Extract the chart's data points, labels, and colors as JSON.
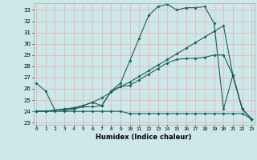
{
  "xlabel": "Humidex (Indice chaleur)",
  "bg_color": "#cce8e8",
  "grid_color": "#e8b8b8",
  "line_color": "#1a6060",
  "yticks": [
    23,
    24,
    25,
    26,
    27,
    28,
    29,
    30,
    31,
    32,
    33
  ],
  "xticks": [
    0,
    1,
    2,
    3,
    4,
    5,
    6,
    7,
    8,
    9,
    10,
    11,
    12,
    13,
    14,
    15,
    16,
    17,
    18,
    19,
    20,
    21,
    22,
    23
  ],
  "xlim": [
    -0.3,
    23.3
  ],
  "ylim": [
    22.8,
    33.6
  ],
  "line1_y": [
    26.5,
    25.8,
    24.1,
    24.1,
    24.2,
    24.4,
    24.4,
    24.5,
    25.8,
    26.5,
    28.5,
    30.5,
    32.5,
    33.3,
    33.5,
    33.0,
    33.2,
    33.2,
    33.3,
    31.8,
    24.2,
    27.2,
    24.2,
    23.3
  ],
  "line2_y": [
    24.0,
    24.0,
    24.0,
    24.0,
    24.0,
    24.0,
    24.0,
    24.0,
    24.0,
    24.0,
    23.8,
    23.8,
    23.8,
    23.8,
    23.8,
    23.8,
    23.8,
    23.8,
    23.8,
    23.8,
    23.8,
    23.8,
    23.8,
    23.3
  ],
  "line3_y": [
    24.0,
    24.0,
    24.1,
    24.2,
    24.3,
    24.5,
    24.8,
    24.5,
    25.8,
    26.2,
    26.3,
    26.8,
    27.3,
    27.8,
    28.3,
    28.6,
    28.7,
    28.7,
    28.8,
    29.0,
    29.0,
    27.2,
    24.2,
    23.3
  ],
  "line4_y": [
    24.0,
    24.0,
    24.1,
    24.2,
    24.3,
    24.5,
    24.8,
    25.2,
    25.7,
    26.2,
    26.6,
    27.1,
    27.6,
    28.1,
    28.6,
    29.1,
    29.6,
    30.1,
    30.6,
    31.1,
    31.6,
    27.2,
    24.2,
    23.3
  ]
}
